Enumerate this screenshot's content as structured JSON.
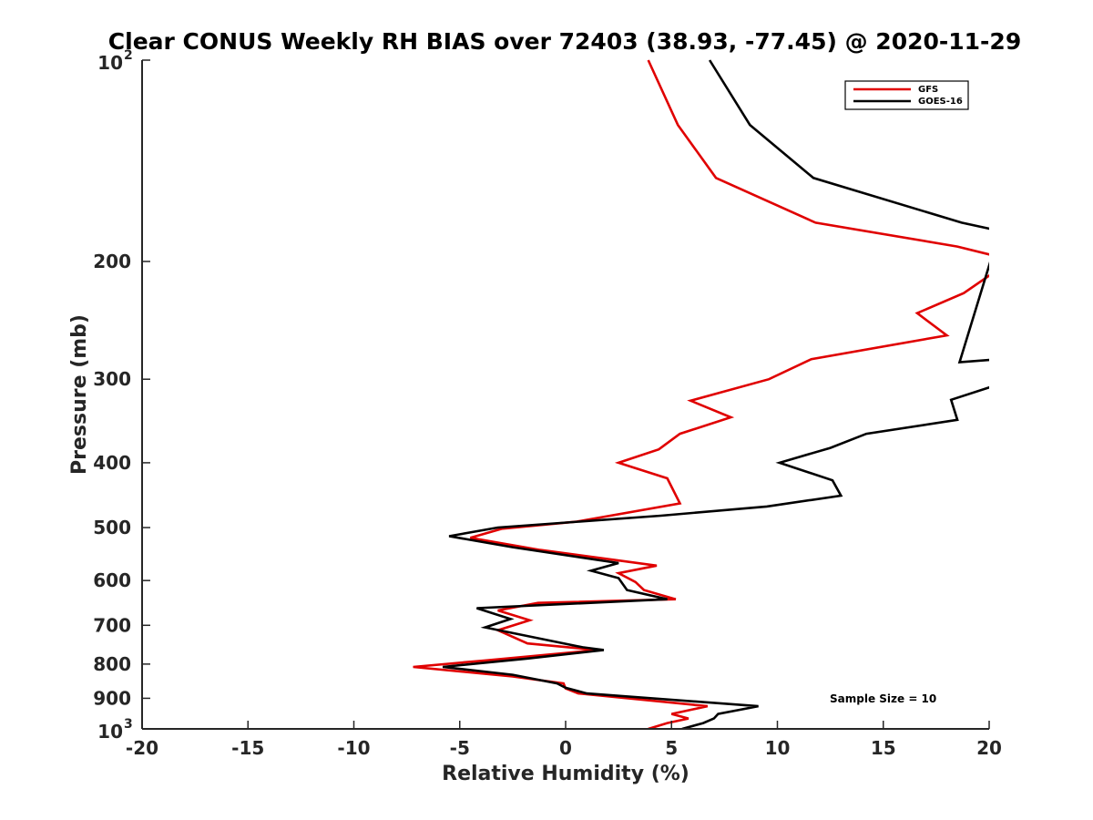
{
  "chart_data": {
    "type": "line",
    "title": "Clear CONUS Weekly RH BIAS over 72403 (38.93, -77.45) @ 2020-11-29",
    "xlabel": "Relative Humidity (%)",
    "ylabel": "Pressure (mb)",
    "xlim": [
      -20,
      20
    ],
    "ylim": [
      100,
      1000
    ],
    "yscale": "log",
    "grid": false,
    "legend_position": "top-right",
    "x_ticks": [
      -20,
      -15,
      -10,
      -5,
      0,
      5,
      10,
      15,
      20
    ],
    "y_ticks": [
      {
        "value": 100,
        "label": "10",
        "exp": "2"
      },
      {
        "value": 200,
        "label": "200"
      },
      {
        "value": 300,
        "label": "300"
      },
      {
        "value": 400,
        "label": "400"
      },
      {
        "value": 500,
        "label": "500"
      },
      {
        "value": 600,
        "label": "600"
      },
      {
        "value": 700,
        "label": "700"
      },
      {
        "value": 800,
        "label": "800"
      },
      {
        "value": 900,
        "label": "900"
      },
      {
        "value": 1000,
        "label": "10",
        "exp": "3"
      }
    ],
    "annotation": "Sample Size = 10",
    "series": [
      {
        "name": "GFS",
        "color": "#e00000",
        "points": [
          [
            3.9,
            100
          ],
          [
            5.3,
            125
          ],
          [
            7.1,
            150
          ],
          [
            11.8,
            175
          ],
          [
            18.5,
            190
          ],
          [
            20.5,
            197
          ],
          [
            20.5,
            206
          ],
          [
            20,
            210
          ],
          [
            18.8,
            223
          ],
          [
            16.6,
            239
          ],
          [
            18,
            258
          ],
          [
            11.6,
            280
          ],
          [
            9.6,
            300
          ],
          [
            5.9,
            323
          ],
          [
            7.8,
            342
          ],
          [
            5.4,
            362
          ],
          [
            4.4,
            382
          ],
          [
            2.5,
            400
          ],
          [
            4.8,
            422
          ],
          [
            5.4,
            460
          ],
          [
            0.5,
            490
          ],
          [
            -3,
            502
          ],
          [
            -4.5,
            518
          ],
          [
            -1.2,
            540
          ],
          [
            4.3,
            570
          ],
          [
            2.5,
            585
          ],
          [
            3.3,
            603
          ],
          [
            3.7,
            620
          ],
          [
            5.2,
            640
          ],
          [
            -1.3,
            648
          ],
          [
            -3.2,
            665
          ],
          [
            -1.7,
            688
          ],
          [
            -3.2,
            712
          ],
          [
            -1.8,
            745
          ],
          [
            1.5,
            762
          ],
          [
            -3.8,
            790
          ],
          [
            -7.2,
            808
          ],
          [
            -2.5,
            835
          ],
          [
            -0.1,
            855
          ],
          [
            0,
            870
          ],
          [
            0.6,
            885
          ],
          [
            6.7,
            925
          ],
          [
            5,
            950
          ],
          [
            5.8,
            965
          ],
          [
            4.8,
            980
          ],
          [
            3.9,
            1000
          ]
        ]
      },
      {
        "name": "GOES-16",
        "color": "#000000",
        "points": [
          [
            6.8,
            100
          ],
          [
            8.7,
            125
          ],
          [
            11.7,
            150
          ],
          [
            18.7,
            175
          ],
          [
            20.5,
            180
          ],
          [
            18.6,
            283
          ],
          [
            20.5,
            280
          ],
          [
            20.5,
            305
          ],
          [
            18.2,
            322
          ],
          [
            18.5,
            345
          ],
          [
            14.2,
            362
          ],
          [
            12.5,
            380
          ],
          [
            10.1,
            400
          ],
          [
            12.6,
            425
          ],
          [
            13,
            448
          ],
          [
            9.5,
            465
          ],
          [
            4.5,
            480
          ],
          [
            -3.2,
            500
          ],
          [
            -5.5,
            515
          ],
          [
            -2.5,
            535
          ],
          [
            2.5,
            565
          ],
          [
            1.2,
            580
          ],
          [
            2.5,
            595
          ],
          [
            2.9,
            620
          ],
          [
            4.8,
            640
          ],
          [
            -4.2,
            660
          ],
          [
            -2.6,
            685
          ],
          [
            -3.8,
            705
          ],
          [
            0.8,
            755
          ],
          [
            1.8,
            762
          ],
          [
            -1.8,
            785
          ],
          [
            -5.8,
            808
          ],
          [
            -2.5,
            830
          ],
          [
            -0.4,
            855
          ],
          [
            0,
            868
          ],
          [
            1,
            885
          ],
          [
            9.1,
            925
          ],
          [
            7.2,
            950
          ],
          [
            7,
            965
          ],
          [
            6.5,
            980
          ],
          [
            5.5,
            1000
          ]
        ]
      }
    ]
  }
}
